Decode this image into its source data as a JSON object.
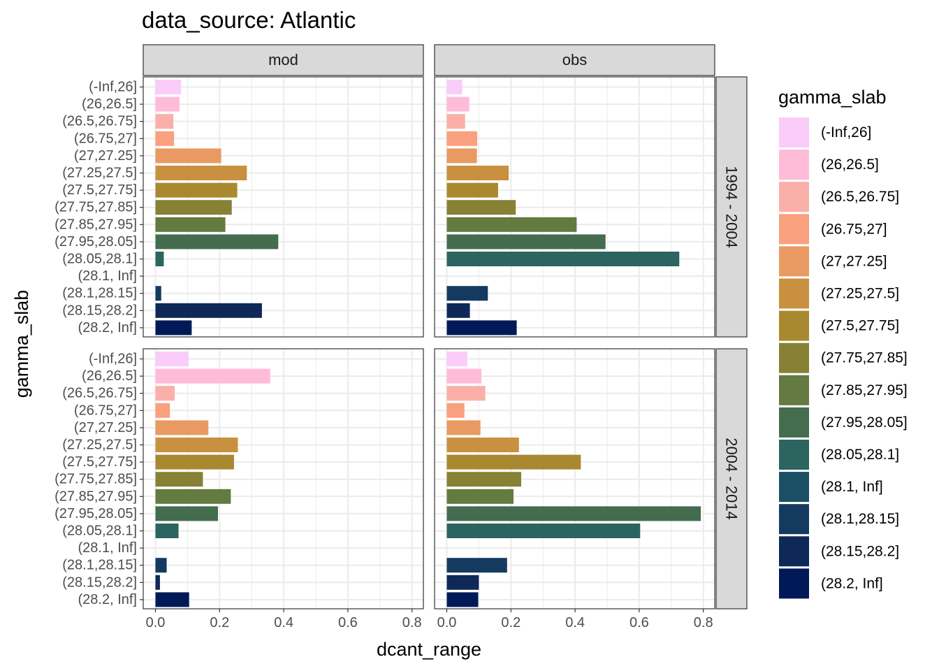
{
  "chart_data": {
    "type": "bar",
    "orientation": "horizontal",
    "title": "data_source: Atlantic",
    "xlabel": "dcant_range",
    "ylabel": "gamma_slab",
    "xlim": [
      0,
      0.8
    ],
    "xticks": [
      0.0,
      0.2,
      0.4,
      0.6,
      0.8
    ],
    "xtick_labels": [
      "0.0",
      "0.2",
      "0.4",
      "0.6",
      "0.8"
    ],
    "grid": true,
    "legend_position": "right",
    "legend_title": "gamma_slab",
    "categories": [
      "(-Inf,26]",
      "(26,26.5]",
      "(26.5,26.75]",
      "(26.75,27]",
      "(27,27.25]",
      "(27.25,27.5]",
      "(27.5,27.75]",
      "(27.75,27.85]",
      "(27.85,27.95]",
      "(27.95,28.05]",
      "(28.05,28.1]",
      "(28.1, Inf]",
      "(28.1,28.15]",
      "(28.15,28.2]",
      "(28.2, Inf]"
    ],
    "colors": [
      "#F9CCF9",
      "#FEBCD9",
      "#FBAFA9",
      "#F9A07E",
      "#E99A62",
      "#C8903F",
      "#A88930",
      "#868135",
      "#637A40",
      "#446C4F",
      "#2C6460",
      "#1B5064",
      "#143B5F",
      "#0E2858",
      "#001A57"
    ],
    "col_facets": [
      "mod",
      "obs"
    ],
    "row_facets": [
      "1994 - 2004",
      "2004 - 2014"
    ],
    "panels": [
      {
        "col": "mod",
        "row": "1994 - 2004",
        "values": [
          0.08,
          0.075,
          0.056,
          0.058,
          0.205,
          0.285,
          0.255,
          0.238,
          0.218,
          0.383,
          0.026,
          null,
          0.018,
          0.332,
          0.113
        ]
      },
      {
        "col": "obs",
        "row": "1994 - 2004",
        "values": [
          0.048,
          0.07,
          0.057,
          0.095,
          0.094,
          0.193,
          0.16,
          0.215,
          0.405,
          0.495,
          0.725,
          null,
          0.128,
          0.072,
          0.218
        ]
      },
      {
        "col": "mod",
        "row": "2004 - 2014",
        "values": [
          0.103,
          0.358,
          0.06,
          0.045,
          0.165,
          0.257,
          0.245,
          0.148,
          0.235,
          0.195,
          0.072,
          null,
          0.035,
          0.014,
          0.105
        ]
      },
      {
        "col": "obs",
        "row": "2004 - 2014",
        "values": [
          0.064,
          0.108,
          0.12,
          0.055,
          0.105,
          0.225,
          0.418,
          0.232,
          0.208,
          0.792,
          0.603,
          null,
          0.188,
          0.1,
          0.098
        ]
      }
    ]
  }
}
